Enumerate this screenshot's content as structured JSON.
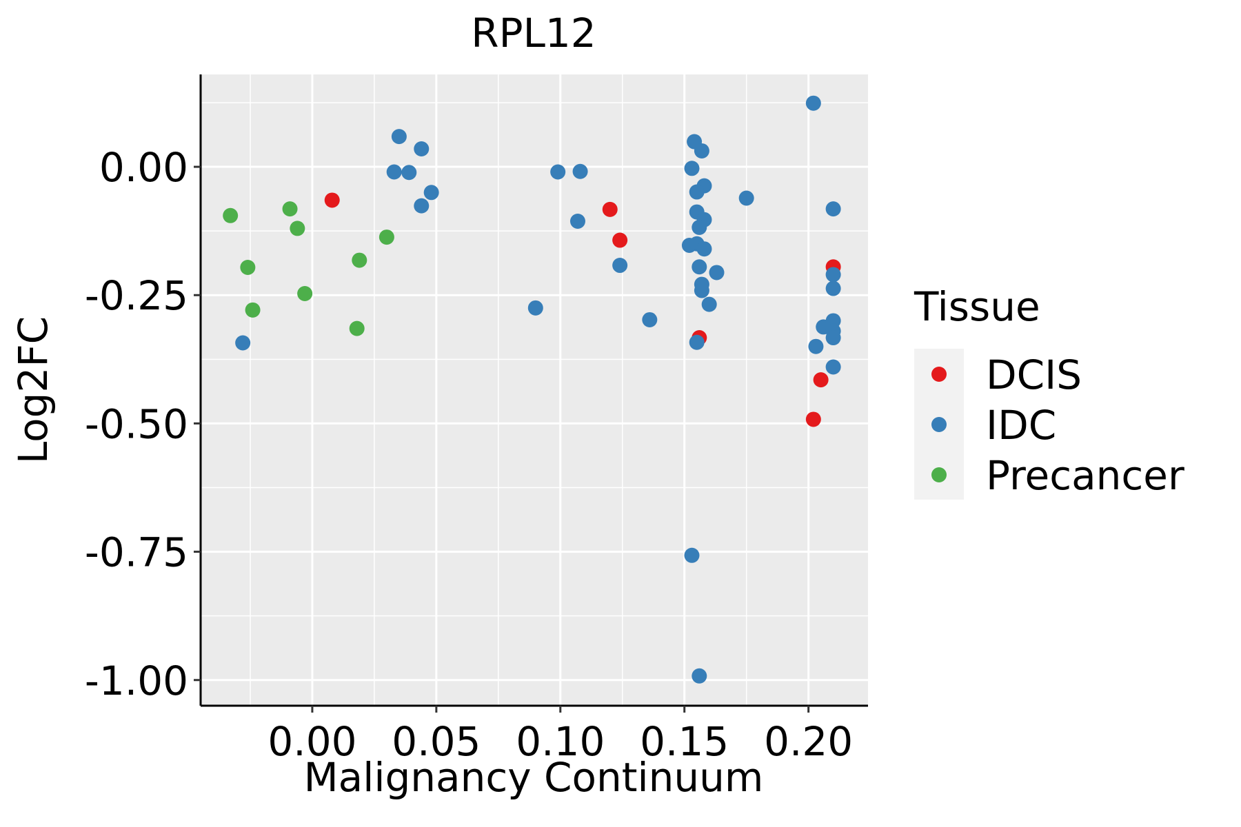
{
  "chart_data": {
    "type": "scatter",
    "title": "RPL12",
    "xlabel": "Malignancy Continuum",
    "ylabel": "Log2FC",
    "xlim": [
      -0.045,
      0.224
    ],
    "ylim": [
      -1.05,
      0.18
    ],
    "x_ticks": [
      0.0,
      0.05,
      0.1,
      0.15,
      0.2
    ],
    "x_tick_labels": [
      "0.00",
      "0.05",
      "0.10",
      "0.15",
      "0.20"
    ],
    "y_ticks": [
      0.0,
      -0.25,
      -0.5,
      -0.75,
      -1.0
    ],
    "y_tick_labels": [
      "0.00",
      "-0.25",
      "-0.50",
      "-0.75",
      "-1.00"
    ],
    "grid": true,
    "legend": {
      "title": "Tissue",
      "position": "right",
      "entries": [
        {
          "label": "DCIS",
          "color": "#E41A1C"
        },
        {
          "label": "IDC",
          "color": "#377EB8"
        },
        {
          "label": "Precancer",
          "color": "#4DAF4A"
        }
      ]
    },
    "colors": {
      "panel": "#EBEBEB",
      "grid": "#FFFFFF",
      "axis": "#000000"
    },
    "series": [
      {
        "name": "DCIS",
        "color": "#E41A1C",
        "points": [
          {
            "x": 0.008,
            "y": -0.065
          },
          {
            "x": 0.12,
            "y": -0.083
          },
          {
            "x": 0.124,
            "y": -0.143
          },
          {
            "x": 0.156,
            "y": -0.333
          },
          {
            "x": 0.21,
            "y": -0.195
          },
          {
            "x": 0.205,
            "y": -0.415
          },
          {
            "x": 0.202,
            "y": -0.492
          }
        ]
      },
      {
        "name": "IDC",
        "color": "#377EB8",
        "points": [
          {
            "x": -0.028,
            "y": -0.343
          },
          {
            "x": 0.035,
            "y": 0.059
          },
          {
            "x": 0.044,
            "y": 0.035
          },
          {
            "x": 0.033,
            "y": -0.01
          },
          {
            "x": 0.039,
            "y": -0.011
          },
          {
            "x": 0.048,
            "y": -0.05
          },
          {
            "x": 0.044,
            "y": -0.076
          },
          {
            "x": 0.09,
            "y": -0.275
          },
          {
            "x": 0.099,
            "y": -0.01
          },
          {
            "x": 0.108,
            "y": -0.009
          },
          {
            "x": 0.107,
            "y": -0.106
          },
          {
            "x": 0.124,
            "y": -0.192
          },
          {
            "x": 0.136,
            "y": -0.298
          },
          {
            "x": 0.154,
            "y": 0.049
          },
          {
            "x": 0.157,
            "y": 0.031
          },
          {
            "x": 0.153,
            "y": -0.003
          },
          {
            "x": 0.158,
            "y": -0.037
          },
          {
            "x": 0.155,
            "y": -0.049
          },
          {
            "x": 0.175,
            "y": -0.061
          },
          {
            "x": 0.155,
            "y": -0.088
          },
          {
            "x": 0.158,
            "y": -0.103
          },
          {
            "x": 0.156,
            "y": -0.118
          },
          {
            "x": 0.152,
            "y": -0.153
          },
          {
            "x": 0.155,
            "y": -0.15
          },
          {
            "x": 0.158,
            "y": -0.16
          },
          {
            "x": 0.156,
            "y": -0.195
          },
          {
            "x": 0.163,
            "y": -0.206
          },
          {
            "x": 0.157,
            "y": -0.229
          },
          {
            "x": 0.157,
            "y": -0.241
          },
          {
            "x": 0.16,
            "y": -0.268
          },
          {
            "x": 0.155,
            "y": -0.342
          },
          {
            "x": 0.153,
            "y": -0.757
          },
          {
            "x": 0.156,
            "y": -0.992
          },
          {
            "x": 0.202,
            "y": 0.124
          },
          {
            "x": 0.21,
            "y": -0.082
          },
          {
            "x": 0.21,
            "y": -0.21
          },
          {
            "x": 0.21,
            "y": -0.237
          },
          {
            "x": 0.21,
            "y": -0.3
          },
          {
            "x": 0.206,
            "y": -0.312
          },
          {
            "x": 0.21,
            "y": -0.32
          },
          {
            "x": 0.21,
            "y": -0.333
          },
          {
            "x": 0.203,
            "y": -0.35
          },
          {
            "x": 0.21,
            "y": -0.39
          }
        ]
      },
      {
        "name": "Precancer",
        "color": "#4DAF4A",
        "points": [
          {
            "x": -0.033,
            "y": -0.095
          },
          {
            "x": -0.026,
            "y": -0.196
          },
          {
            "x": -0.024,
            "y": -0.279
          },
          {
            "x": -0.009,
            "y": -0.082
          },
          {
            "x": -0.006,
            "y": -0.12
          },
          {
            "x": -0.003,
            "y": -0.247
          },
          {
            "x": 0.018,
            "y": -0.315
          },
          {
            "x": 0.019,
            "y": -0.182
          },
          {
            "x": 0.03,
            "y": -0.137
          }
        ]
      }
    ]
  }
}
